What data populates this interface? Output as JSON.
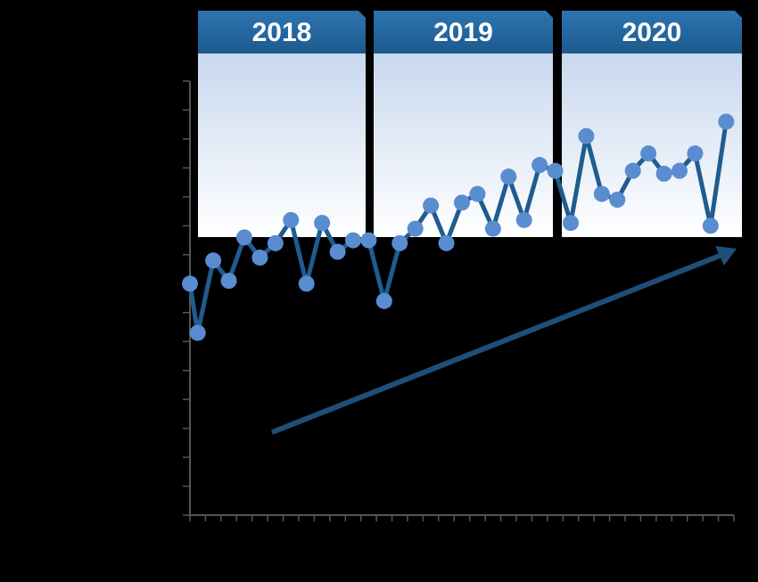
{
  "chart_data": {
    "type": "line",
    "annotations": [
      "2018",
      "2019",
      "2020"
    ],
    "x": [
      0,
      0.5,
      1.5,
      2.5,
      3.5,
      4.5,
      5.5,
      6.5,
      7.5,
      8.5,
      9.5,
      10.5,
      11.5,
      12.5,
      13.5,
      14.5,
      15.5,
      16.5,
      17.5,
      18.5,
      19.5,
      20.5,
      21.5,
      22.5,
      23.5,
      24.5,
      25.5,
      26.5,
      27.5,
      28.5,
      29.5,
      30.5,
      31.5,
      32.5,
      33.5,
      34.5
    ],
    "values": [
      8.0,
      6.3,
      8.8,
      8.1,
      9.6,
      8.9,
      9.4,
      10.2,
      8.0,
      10.1,
      9.1,
      9.5,
      9.5,
      7.4,
      9.4,
      9.9,
      10.7,
      9.4,
      10.8,
      11.1,
      9.9,
      11.7,
      10.2,
      12.1,
      11.9,
      10.1,
      13.1,
      11.1,
      10.9,
      11.9,
      12.5,
      11.8,
      11.9,
      12.5,
      10.0,
      13.6
    ],
    "color": "#1f5c8f",
    "marker_color": "#5a8cd0",
    "xlim": [
      0,
      35
    ],
    "xticks": [
      0,
      1,
      2,
      3,
      4,
      5,
      6,
      7,
      8,
      9,
      10,
      11,
      12,
      13,
      14,
      15,
      16,
      17,
      18,
      19,
      20,
      21,
      22,
      23,
      24,
      25,
      26,
      27,
      28,
      29,
      30,
      31,
      32,
      33,
      34,
      35
    ],
    "ylim": [
      0,
      15
    ],
    "yticks": [
      0,
      1,
      2,
      3,
      4,
      5,
      6,
      7,
      8,
      9,
      10,
      11,
      12,
      13,
      14,
      15
    ]
  }
}
